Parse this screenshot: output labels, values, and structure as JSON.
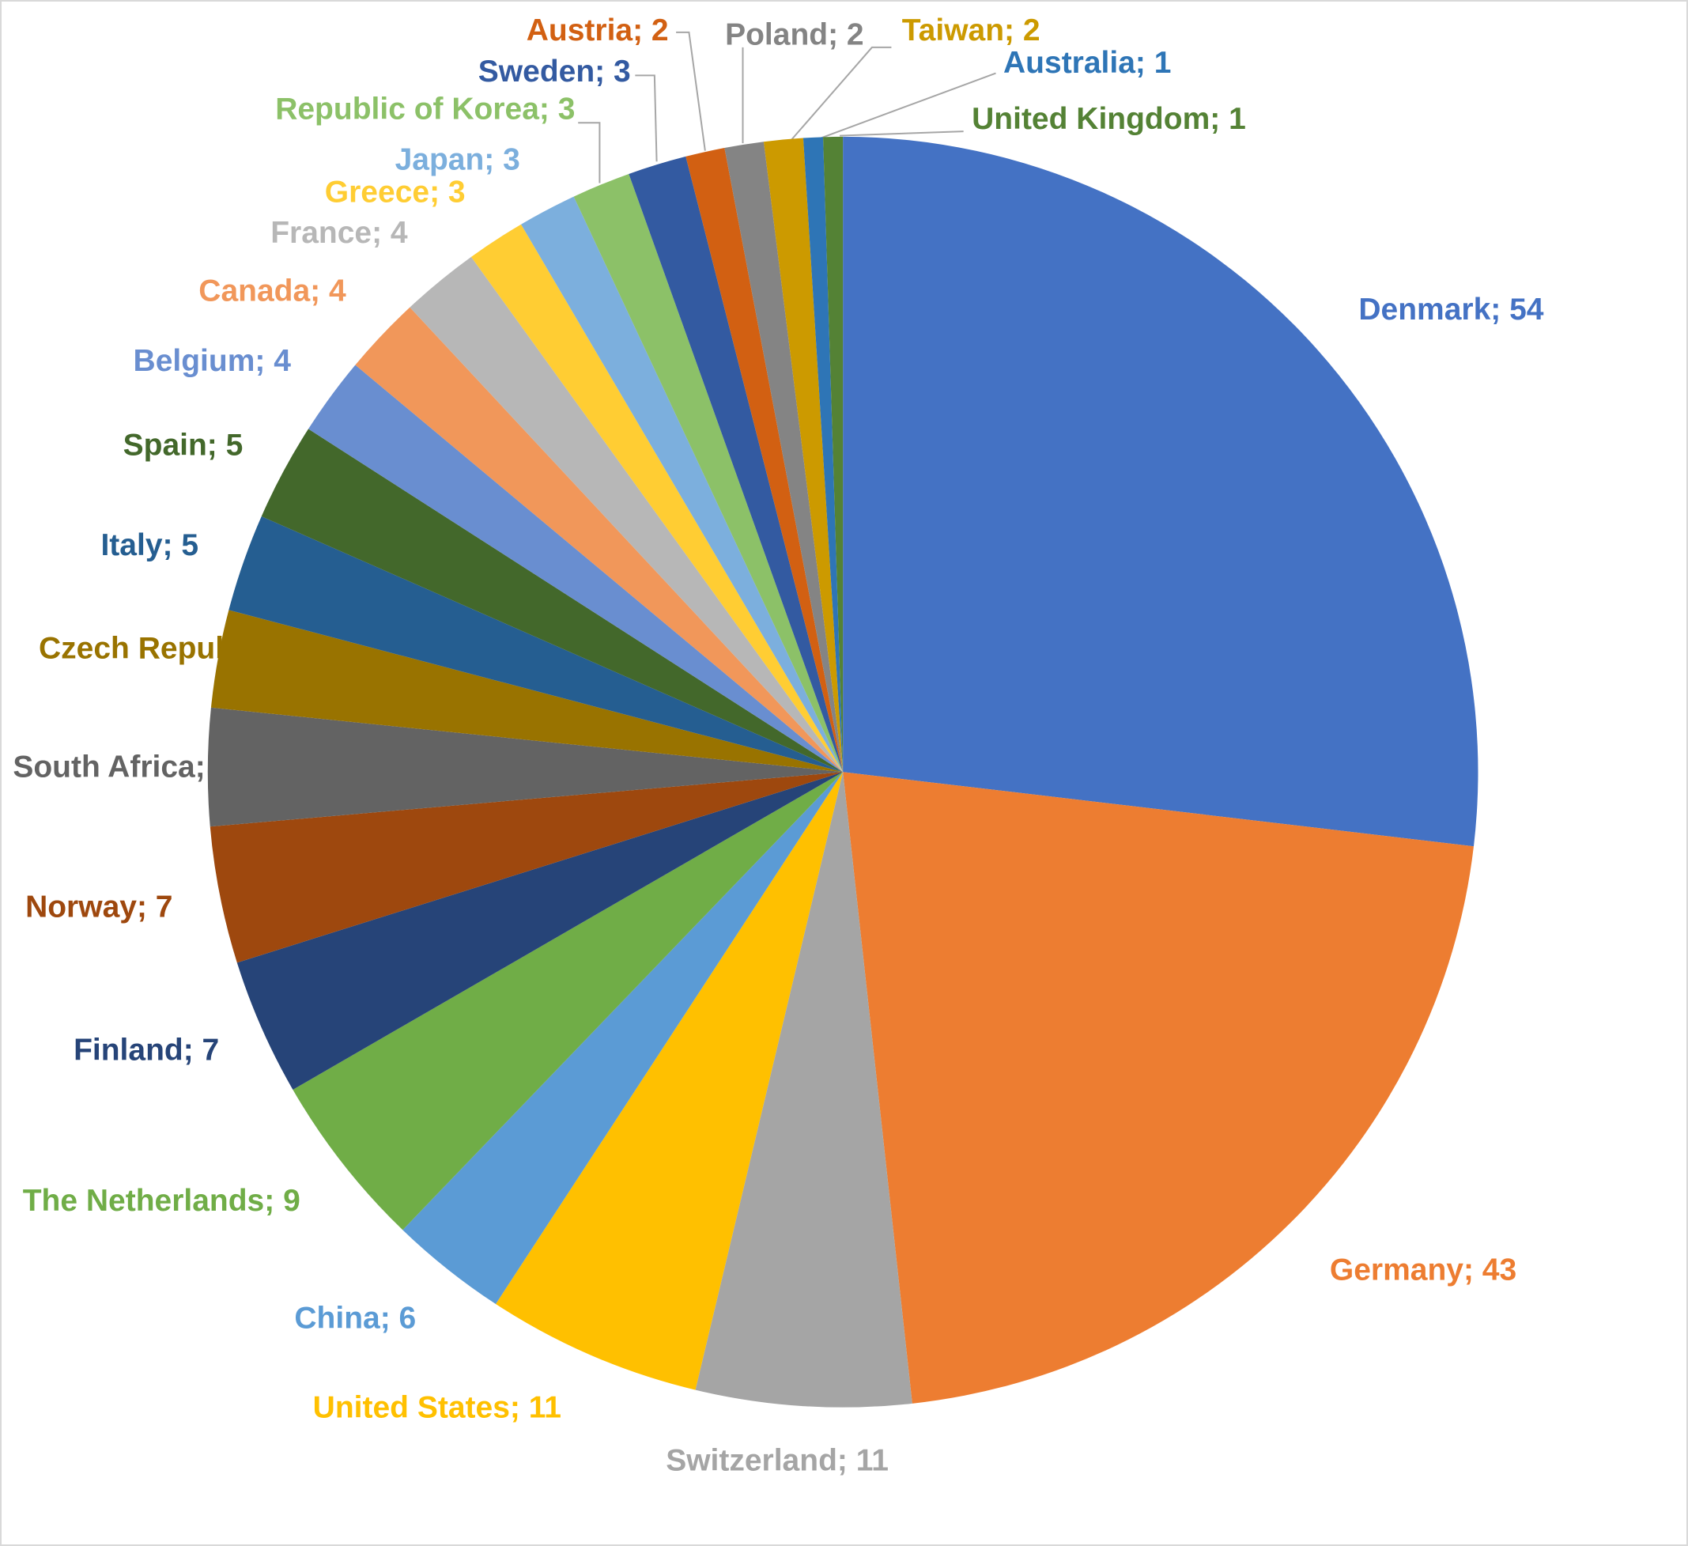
{
  "chart_data": {
    "type": "pie",
    "values": [
      54,
      43,
      11,
      11,
      6,
      9,
      7,
      7,
      6,
      5,
      5,
      5,
      4,
      4,
      4,
      3,
      3,
      3,
      3,
      2,
      2,
      2,
      1,
      1
    ],
    "value_labels": [
      "Denmark; 54",
      "Germany; 43",
      "Switzerland; 11",
      "United States; 11",
      "China; 6",
      "The Netherlands; 9",
      "Finland; 7",
      "Norway; 7",
      "South Africa;",
      "Czech Repub",
      "Italy; 5",
      "Spain; 5",
      "Belgium; 4",
      "Canada; 4",
      "France; 4",
      "Greece; 3",
      "Japan; 3",
      "Republic of Korea; 3",
      "Sweden; 3",
      "Austria; 2",
      "Poland; 2",
      "Taiwan; 2",
      "Australia; 1",
      "United Kingdom; 1"
    ],
    "colors": [
      "#4472C4",
      "#ED7D31",
      "#A5A5A5",
      "#FFC000",
      "#5B9BD5",
      "#70AD47",
      "#264478",
      "#9E480E",
      "#636363",
      "#997300",
      "#255E91",
      "#43682B",
      "#698ED0",
      "#F1975A",
      "#B7B7B7",
      "#FFCD33",
      "#7CAFDD",
      "#8CC168",
      "#335AA1",
      "#D26012",
      "#848484",
      "#CC9A00",
      "#2E75B6",
      "#548235"
    ]
  }
}
